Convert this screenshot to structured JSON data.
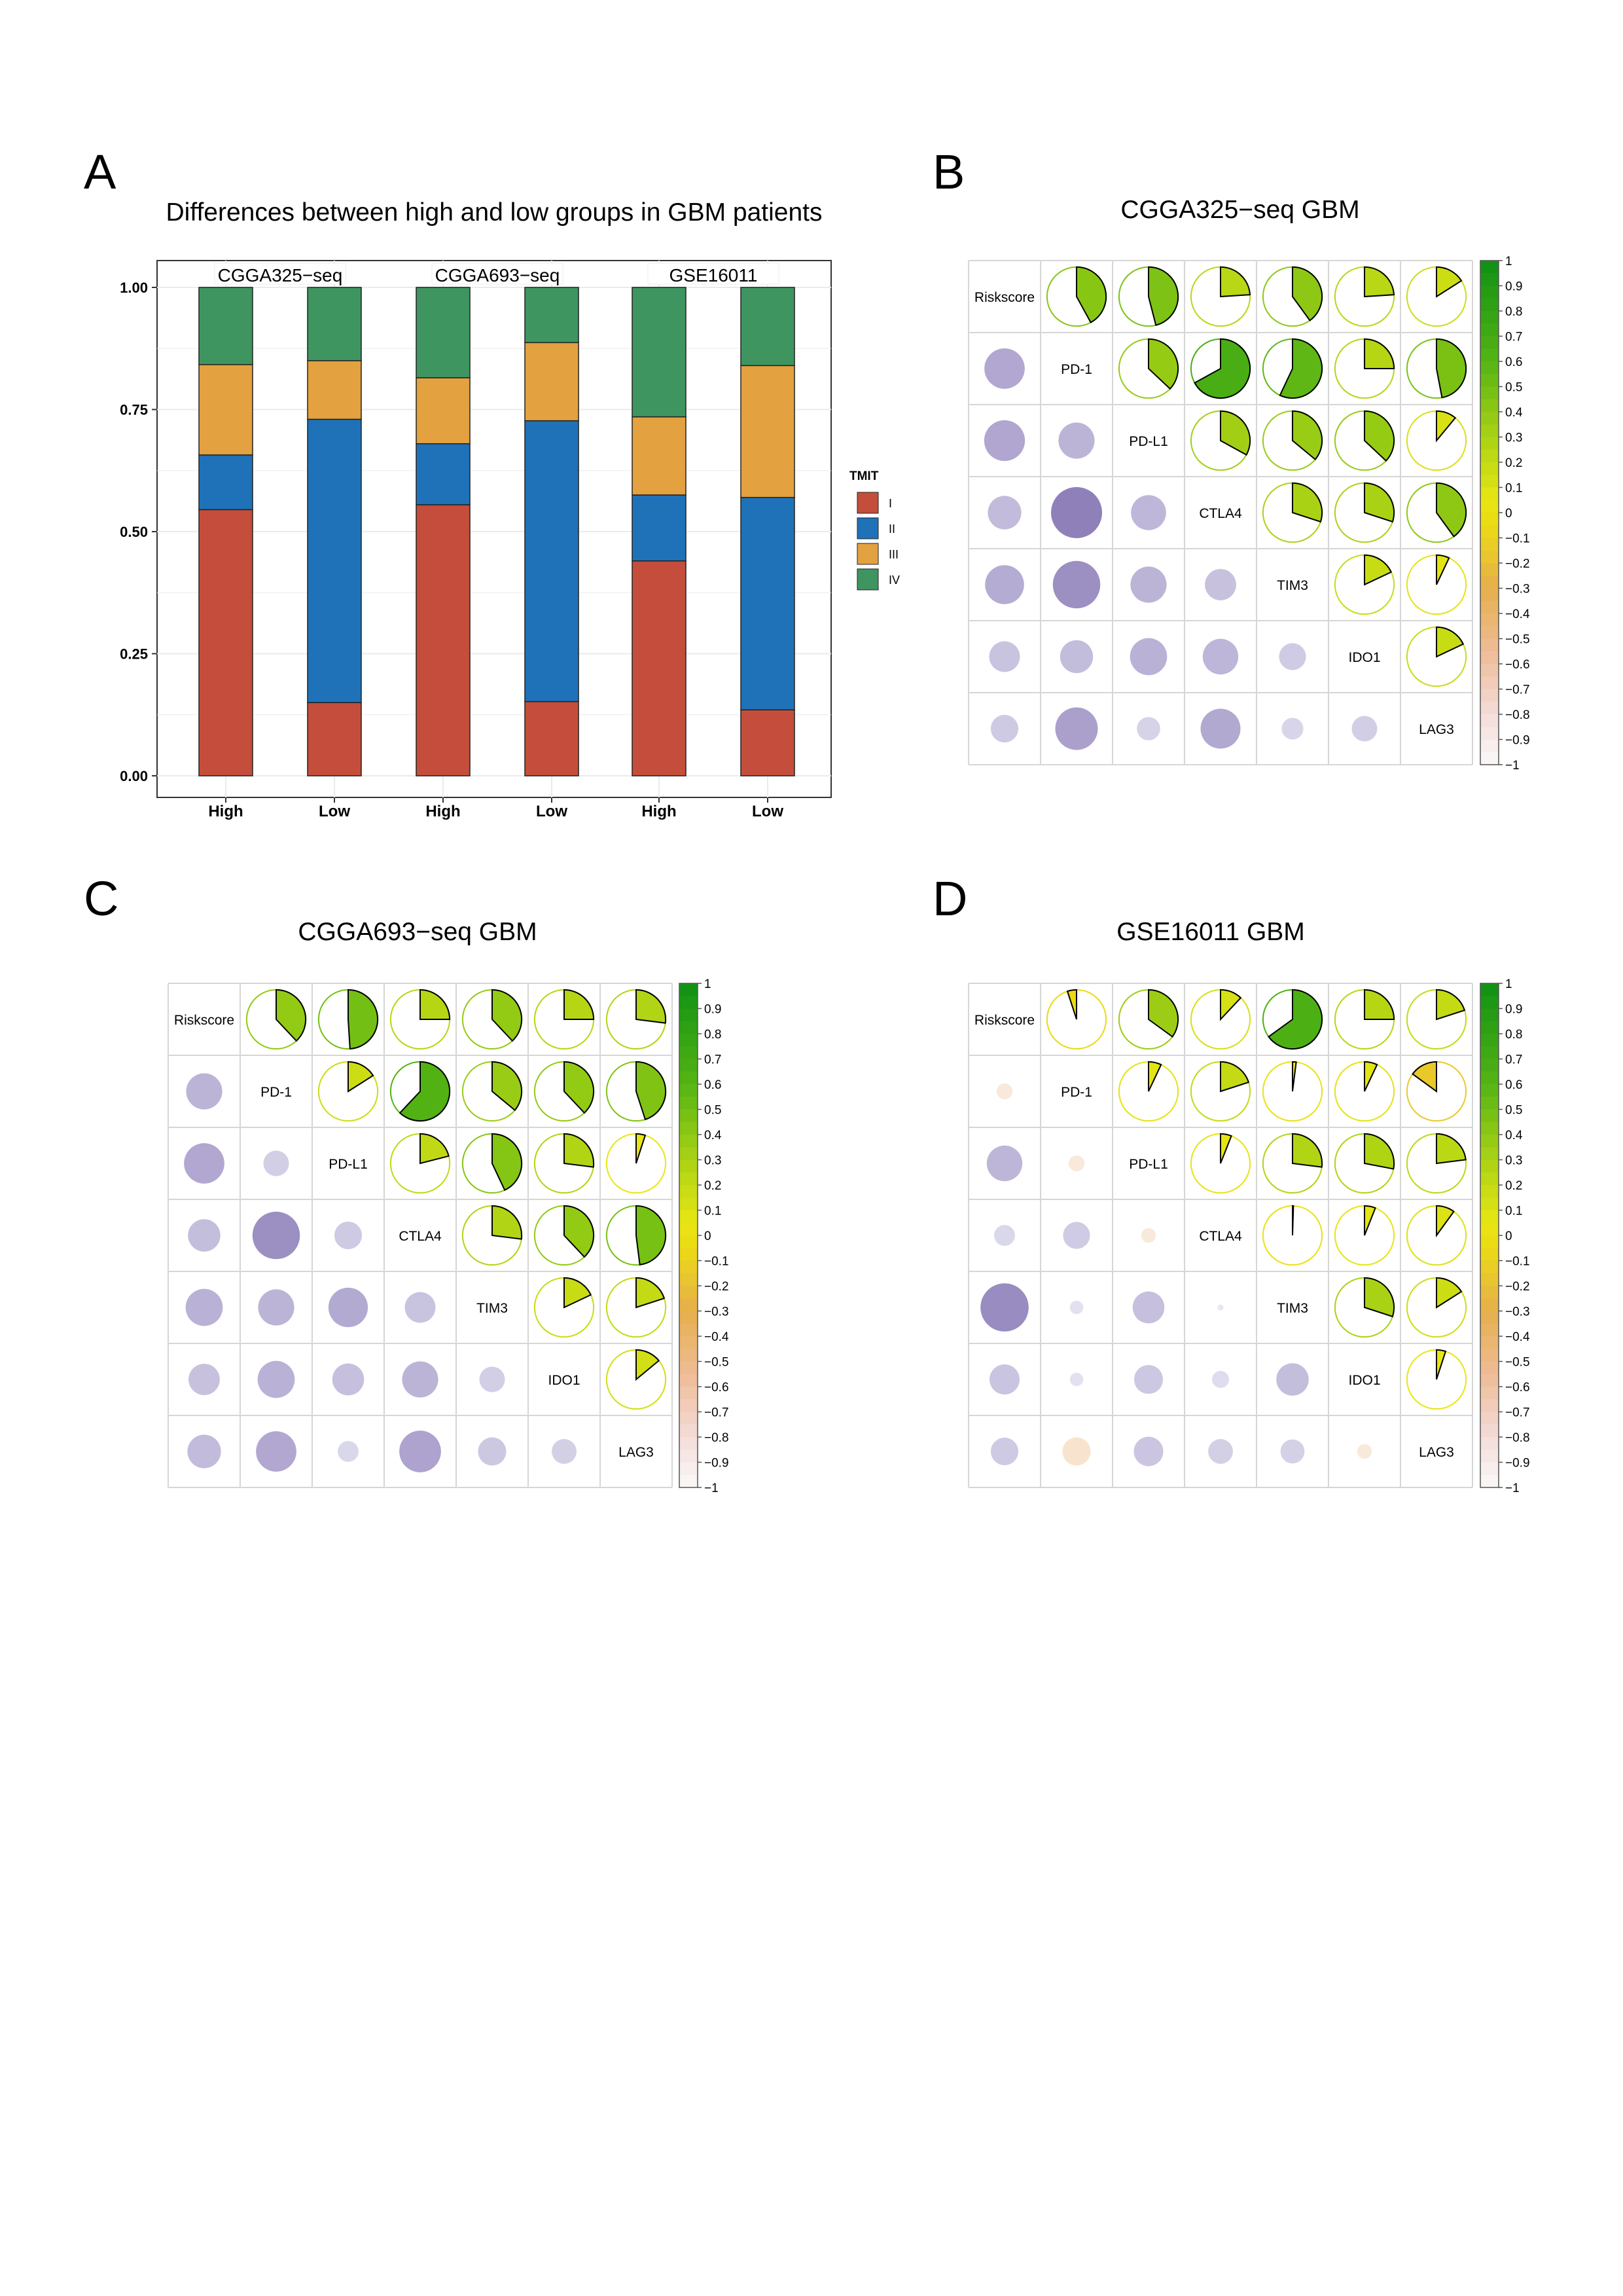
{
  "panel_letters": {
    "a": "A",
    "b": "B",
    "c": "C",
    "d": "D"
  },
  "chart_data": [
    {
      "id": "A",
      "type": "bar",
      "stacked": true,
      "title": "Differences between high and low groups in GBM patients",
      "xlabel": "",
      "ylabel": "",
      "ylim": [
        0,
        1
      ],
      "yticks": [
        "0.00",
        "0.25",
        "0.50",
        "0.75",
        "1.00"
      ],
      "facets": [
        "CGGA325−seq",
        "CGGA693−seq",
        "GSE16011"
      ],
      "categories": [
        "High",
        "Low",
        "High",
        "Low",
        "High",
        "Low"
      ],
      "legend": {
        "title": "TMIT",
        "position": "right"
      },
      "colors": {
        "I": "#C44E3B",
        "II": "#1F72B8",
        "III": "#E3A13F",
        "IV": "#3E9560"
      },
      "series": [
        {
          "name": "I",
          "values": [
            0.545,
            0.15,
            0.555,
            0.152,
            0.44,
            0.135
          ]
        },
        {
          "name": "II",
          "values": [
            0.112,
            0.58,
            0.125,
            0.575,
            0.135,
            0.435
          ]
        },
        {
          "name": "III",
          "values": [
            0.185,
            0.12,
            0.135,
            0.16,
            0.16,
            0.27
          ]
        },
        {
          "name": "IV",
          "values": [
            0.158,
            0.15,
            0.185,
            0.113,
            0.265,
            0.16
          ]
        }
      ]
    },
    {
      "id": "B",
      "type": "heatmap",
      "title": "CGGA325−seq GBM",
      "variables": [
        "Riskscore",
        "PD-1",
        "PD-L1",
        "CTLA4",
        "TIM3",
        "IDO1",
        "LAG3"
      ],
      "upper_pies": [
        [
          "Riskscore",
          "PD-1",
          0.42
        ],
        [
          "Riskscore",
          "PD-L1",
          0.46
        ],
        [
          "Riskscore",
          "CTLA4",
          0.24
        ],
        [
          "Riskscore",
          "TIM3",
          0.4
        ],
        [
          "Riskscore",
          "IDO1",
          0.24
        ],
        [
          "Riskscore",
          "LAG3",
          0.16
        ],
        [
          "PD-1",
          "PD-L1",
          0.37
        ],
        [
          "PD-1",
          "CTLA4",
          0.67
        ],
        [
          "PD-1",
          "TIM3",
          0.57
        ],
        [
          "PD-1",
          "IDO1",
          0.25
        ],
        [
          "PD-1",
          "LAG3",
          0.47
        ],
        [
          "PD-L1",
          "CTLA4",
          0.33
        ],
        [
          "PD-L1",
          "TIM3",
          0.36
        ],
        [
          "PD-L1",
          "IDO1",
          0.37
        ],
        [
          "PD-L1",
          "LAG3",
          0.11
        ],
        [
          "CTLA4",
          "TIM3",
          0.3
        ],
        [
          "CTLA4",
          "IDO1",
          0.3
        ],
        [
          "CTLA4",
          "LAG3",
          0.4
        ],
        [
          "TIM3",
          "IDO1",
          0.18
        ],
        [
          "TIM3",
          "LAG3",
          0.07
        ],
        [
          "IDO1",
          "LAG3",
          0.18
        ]
      ],
      "lower_circles": [
        [
          "PD-1",
          "Riskscore",
          0.45
        ],
        [
          "PD-L1",
          "Riskscore",
          0.46
        ],
        [
          "PD-L1",
          "PD-1",
          0.36
        ],
        [
          "CTLA4",
          "Riskscore",
          0.31
        ],
        [
          "CTLA4",
          "PD-1",
          0.72
        ],
        [
          "CTLA4",
          "PD-L1",
          0.34
        ],
        [
          "TIM3",
          "Riskscore",
          0.42
        ],
        [
          "TIM3",
          "PD-1",
          0.62
        ],
        [
          "TIM3",
          "PD-L1",
          0.36
        ],
        [
          "TIM3",
          "CTLA4",
          0.27
        ],
        [
          "IDO1",
          "Riskscore",
          0.26
        ],
        [
          "IDO1",
          "PD-1",
          0.3
        ],
        [
          "IDO1",
          "PD-L1",
          0.38
        ],
        [
          "IDO1",
          "CTLA4",
          0.35
        ],
        [
          "IDO1",
          "TIM3",
          0.2
        ],
        [
          "LAG3",
          "Riskscore",
          0.21
        ],
        [
          "LAG3",
          "PD-1",
          0.5
        ],
        [
          "LAG3",
          "PD-L1",
          0.15
        ],
        [
          "LAG3",
          "CTLA4",
          0.44
        ],
        [
          "LAG3",
          "TIM3",
          0.13
        ],
        [
          "LAG3",
          "IDO1",
          0.18
        ]
      ],
      "colorbar": {
        "min": -1,
        "max": 1,
        "ticks": [
          "1",
          "0.9",
          "0.8",
          "0.7",
          "0.6",
          "0.5",
          "0.4",
          "0.3",
          "0.2",
          "0.1",
          "0",
          "−0.1",
          "−0.2",
          "−0.3",
          "−0.4",
          "−0.5",
          "−0.6",
          "−0.7",
          "−0.8",
          "−0.9",
          "−1"
        ]
      }
    },
    {
      "id": "C",
      "type": "heatmap",
      "title": "CGGA693−seq GBM",
      "variables": [
        "Riskscore",
        "PD-1",
        "PD-L1",
        "CTLA4",
        "TIM3",
        "IDO1",
        "LAG3"
      ],
      "upper_pies": [
        [
          "Riskscore",
          "PD-1",
          0.38
        ],
        [
          "Riskscore",
          "PD-L1",
          0.49
        ],
        [
          "Riskscore",
          "CTLA4",
          0.25
        ],
        [
          "Riskscore",
          "TIM3",
          0.38
        ],
        [
          "Riskscore",
          "IDO1",
          0.25
        ],
        [
          "Riskscore",
          "LAG3",
          0.27
        ],
        [
          "PD-1",
          "PD-L1",
          0.16
        ],
        [
          "PD-1",
          "CTLA4",
          0.62
        ],
        [
          "PD-1",
          "TIM3",
          0.36
        ],
        [
          "PD-1",
          "IDO1",
          0.38
        ],
        [
          "PD-1",
          "LAG3",
          0.45
        ],
        [
          "PD-L1",
          "CTLA4",
          0.21
        ],
        [
          "PD-L1",
          "TIM3",
          0.43
        ],
        [
          "PD-L1",
          "IDO1",
          0.27
        ],
        [
          "PD-L1",
          "LAG3",
          0.05
        ],
        [
          "CTLA4",
          "TIM3",
          0.27
        ],
        [
          "CTLA4",
          "IDO1",
          0.38
        ],
        [
          "CTLA4",
          "LAG3",
          0.48
        ],
        [
          "TIM3",
          "IDO1",
          0.18
        ],
        [
          "TIM3",
          "LAG3",
          0.2
        ],
        [
          "IDO1",
          "LAG3",
          0.14
        ]
      ],
      "lower_circles": [
        [
          "PD-1",
          "Riskscore",
          0.36
        ],
        [
          "PD-L1",
          "Riskscore",
          0.45
        ],
        [
          "PD-L1",
          "PD-1",
          0.18
        ],
        [
          "CTLA4",
          "Riskscore",
          0.29
        ],
        [
          "CTLA4",
          "PD-1",
          0.62
        ],
        [
          "CTLA4",
          "PD-L1",
          0.21
        ],
        [
          "TIM3",
          "Riskscore",
          0.38
        ],
        [
          "TIM3",
          "PD-1",
          0.36
        ],
        [
          "TIM3",
          "PD-L1",
          0.43
        ],
        [
          "TIM3",
          "CTLA4",
          0.26
        ],
        [
          "IDO1",
          "Riskscore",
          0.27
        ],
        [
          "IDO1",
          "PD-1",
          0.38
        ],
        [
          "IDO1",
          "PD-L1",
          0.28
        ],
        [
          "IDO1",
          "CTLA4",
          0.36
        ],
        [
          "IDO1",
          "TIM3",
          0.18
        ],
        [
          "LAG3",
          "Riskscore",
          0.31
        ],
        [
          "LAG3",
          "PD-1",
          0.45
        ],
        [
          "LAG3",
          "PD-L1",
          0.12
        ],
        [
          "LAG3",
          "CTLA4",
          0.48
        ],
        [
          "LAG3",
          "TIM3",
          0.22
        ],
        [
          "LAG3",
          "IDO1",
          0.17
        ]
      ],
      "colorbar": {
        "min": -1,
        "max": 1,
        "ticks": [
          "1",
          "0.9",
          "0.8",
          "0.7",
          "0.6",
          "0.5",
          "0.4",
          "0.3",
          "0.2",
          "0.1",
          "0",
          "−0.1",
          "−0.2",
          "−0.3",
          "−0.4",
          "−0.5",
          "−0.6",
          "−0.7",
          "−0.8",
          "−0.9",
          "−1"
        ]
      }
    },
    {
      "id": "D",
      "type": "heatmap",
      "title": "GSE16011  GBM",
      "variables": [
        "Riskscore",
        "PD-1",
        "PD-L1",
        "CTLA4",
        "TIM3",
        "IDO1",
        "LAG3"
      ],
      "upper_pies": [
        [
          "Riskscore",
          "PD-1",
          -0.05
        ],
        [
          "Riskscore",
          "PD-L1",
          0.35
        ],
        [
          "Riskscore",
          "CTLA4",
          0.12
        ],
        [
          "Riskscore",
          "TIM3",
          0.65
        ],
        [
          "Riskscore",
          "IDO1",
          0.25
        ],
        [
          "Riskscore",
          "LAG3",
          0.2
        ],
        [
          "PD-1",
          "PD-L1",
          0.07
        ],
        [
          "PD-1",
          "CTLA4",
          0.2
        ],
        [
          "PD-1",
          "TIM3",
          0.02
        ],
        [
          "PD-1",
          "IDO1",
          0.07
        ],
        [
          "PD-1",
          "LAG3",
          -0.15
        ],
        [
          "PD-L1",
          "CTLA4",
          0.06
        ],
        [
          "PD-L1",
          "TIM3",
          0.27
        ],
        [
          "PD-L1",
          "IDO1",
          0.28
        ],
        [
          "PD-L1",
          "LAG3",
          0.23
        ],
        [
          "CTLA4",
          "TIM3",
          0.005
        ],
        [
          "CTLA4",
          "IDO1",
          0.06
        ],
        [
          "CTLA4",
          "LAG3",
          0.1
        ],
        [
          "TIM3",
          "IDO1",
          0.3
        ],
        [
          "TIM3",
          "LAG3",
          0.16
        ],
        [
          "IDO1",
          "LAG3",
          0.05
        ]
      ],
      "lower_circles": [
        [
          "PD-1",
          "Riskscore",
          -0.07
        ],
        [
          "PD-L1",
          "Riskscore",
          0.35
        ],
        [
          "PD-L1",
          "PD-1",
          -0.07
        ],
        [
          "CTLA4",
          "Riskscore",
          0.12
        ],
        [
          "CTLA4",
          "PD-1",
          0.2
        ],
        [
          "CTLA4",
          "PD-L1",
          -0.06
        ],
        [
          "TIM3",
          "Riskscore",
          0.64
        ],
        [
          "TIM3",
          "PD-1",
          0.05
        ],
        [
          "TIM3",
          "PD-L1",
          0.28
        ],
        [
          "TIM3",
          "CTLA4",
          0.01
        ],
        [
          "IDO1",
          "Riskscore",
          0.25
        ],
        [
          "IDO1",
          "PD-1",
          0.05
        ],
        [
          "IDO1",
          "PD-L1",
          0.23
        ],
        [
          "IDO1",
          "CTLA4",
          0.08
        ],
        [
          "IDO1",
          "TIM3",
          0.29
        ],
        [
          "LAG3",
          "Riskscore",
          0.21
        ],
        [
          "LAG3",
          "PD-1",
          -0.22
        ],
        [
          "LAG3",
          "PD-L1",
          0.24
        ],
        [
          "LAG3",
          "CTLA4",
          0.17
        ],
        [
          "LAG3",
          "TIM3",
          0.16
        ],
        [
          "LAG3",
          "IDO1",
          -0.06
        ]
      ],
      "colorbar": {
        "min": -1,
        "max": 1,
        "ticks": [
          "1",
          "0.9",
          "0.8",
          "0.7",
          "0.6",
          "0.5",
          "0.4",
          "0.3",
          "0.2",
          "0.1",
          "0",
          "−0.1",
          "−0.2",
          "−0.3",
          "−0.4",
          "−0.5",
          "−0.6",
          "−0.7",
          "−0.8",
          "−0.9",
          "−1"
        ]
      }
    }
  ]
}
